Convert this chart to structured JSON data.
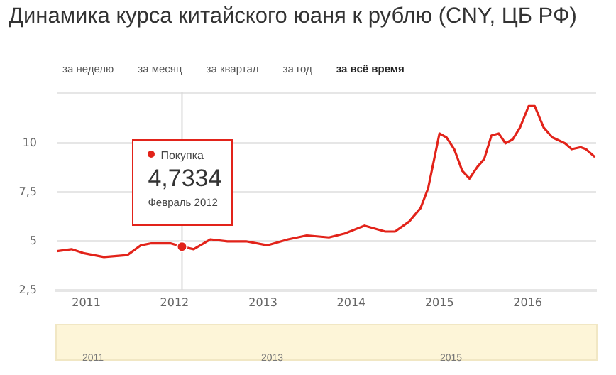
{
  "chart_data": {
    "type": "line",
    "title": "Динамика курса китайского юаня к рублю (CNY, ЦБ РФ)",
    "x": [
      "2010-09-01",
      "2010-11-01",
      "2010-12-20",
      "2011-03-15",
      "2011-06-20",
      "2011-08-15",
      "2011-09-27",
      "2011-12-15",
      "2012-02-01",
      "2012-03-20",
      "2012-05-28",
      "2012-08-07",
      "2012-10-23",
      "2013-01-20",
      "2013-04-15",
      "2013-07-01",
      "2013-10-01",
      "2013-12-05",
      "2014-02-25",
      "2014-05-22",
      "2014-07-01",
      "2014-08-28",
      "2014-10-15",
      "2014-11-15",
      "2015-01-01",
      "2015-01-30",
      "2015-03-03",
      "2015-04-05",
      "2015-05-05",
      "2015-06-07",
      "2015-07-05",
      "2015-08-04",
      "2015-09-03",
      "2015-10-01",
      "2015-10-31",
      "2015-11-30",
      "2016-01-05",
      "2016-01-30",
      "2016-03-07",
      "2016-04-12",
      "2016-06-03",
      "2016-07-01",
      "2016-08-07",
      "2016-08-29",
      "2016-10-05"
    ],
    "series": [
      {
        "color": "#e2231a",
        "values": [
          4.5,
          4.6,
          4.4,
          4.2,
          4.3,
          4.8,
          4.9,
          4.9,
          4.7334,
          4.6,
          5.1,
          5.0,
          5.0,
          4.8,
          5.1,
          5.3,
          5.2,
          5.4,
          5.8,
          5.5,
          5.5,
          6.0,
          6.7,
          7.7,
          10.5,
          10.3,
          9.7,
          8.6,
          8.2,
          8.8,
          9.2,
          10.4,
          10.5,
          10.0,
          10.2,
          10.8,
          11.9,
          11.9,
          10.8,
          10.3,
          10.0,
          9.7,
          9.8,
          9.7,
          9.3
        ]
      }
    ],
    "xlim": [
      "2010-09-01",
      "2016-10-10"
    ],
    "xticks": [
      "2011",
      "2012",
      "2013",
      "2014",
      "2015",
      "2016"
    ],
    "ylim": [
      2.5,
      12.6
    ],
    "yticks": [
      {
        "value": 2.5,
        "label": "2,5"
      },
      5,
      {
        "value": 7.5,
        "label": "7,5"
      },
      10
    ],
    "value_labels": [
      null,
      null,
      null,
      null,
      null,
      null,
      null,
      null,
      "4,7334",
      null,
      null,
      null,
      null,
      null,
      null,
      null,
      null,
      null,
      null,
      null,
      null,
      null,
      null,
      null,
      null,
      null,
      null,
      null,
      null,
      null,
      null,
      null,
      null,
      null,
      null,
      null,
      null,
      null,
      null,
      null,
      null,
      null,
      null,
      null,
      null
    ],
    "grid": "y",
    "legend": false,
    "marker": "none",
    "line_style": "solid",
    "ref_lines": [
      {
        "axis": "x",
        "value": "2012-02-01",
        "color": "#d8d8d8"
      }
    ],
    "annotations": [
      "за неделю",
      "за месяц",
      "за квартал",
      "за год",
      "за всё время",
      "Покупка",
      "Февраль 2012",
      "2011",
      "2013",
      "2015"
    ]
  }
}
